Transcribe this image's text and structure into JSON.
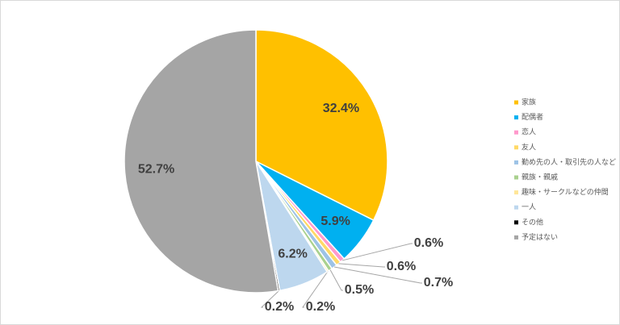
{
  "chart_data": {
    "type": "pie",
    "categories": [
      "家族",
      "配偶者",
      "恋人",
      "友人",
      "勤め先の人・取引先の人など",
      "親族・親戚",
      "趣味・サークルなどの仲間",
      "一人",
      "その他",
      "予定はない"
    ],
    "values": [
      32.4,
      5.9,
      0.6,
      0.6,
      0.7,
      0.5,
      0.2,
      6.2,
      0.2,
      52.7
    ],
    "value_labels": [
      "32.4%",
      "5.9%",
      "0.6%",
      "0.6%",
      "0.7%",
      "0.5%",
      "0.2%",
      "6.2%",
      "0.2%",
      "52.7%"
    ],
    "colors": [
      "#ffc000",
      "#00b0f0",
      "#ff99cc",
      "#ffd966",
      "#9dc3e6",
      "#a9d18e",
      "#ffe699",
      "#bdd7ee",
      "#000000",
      "#a5a5a5"
    ],
    "legend": "right"
  }
}
